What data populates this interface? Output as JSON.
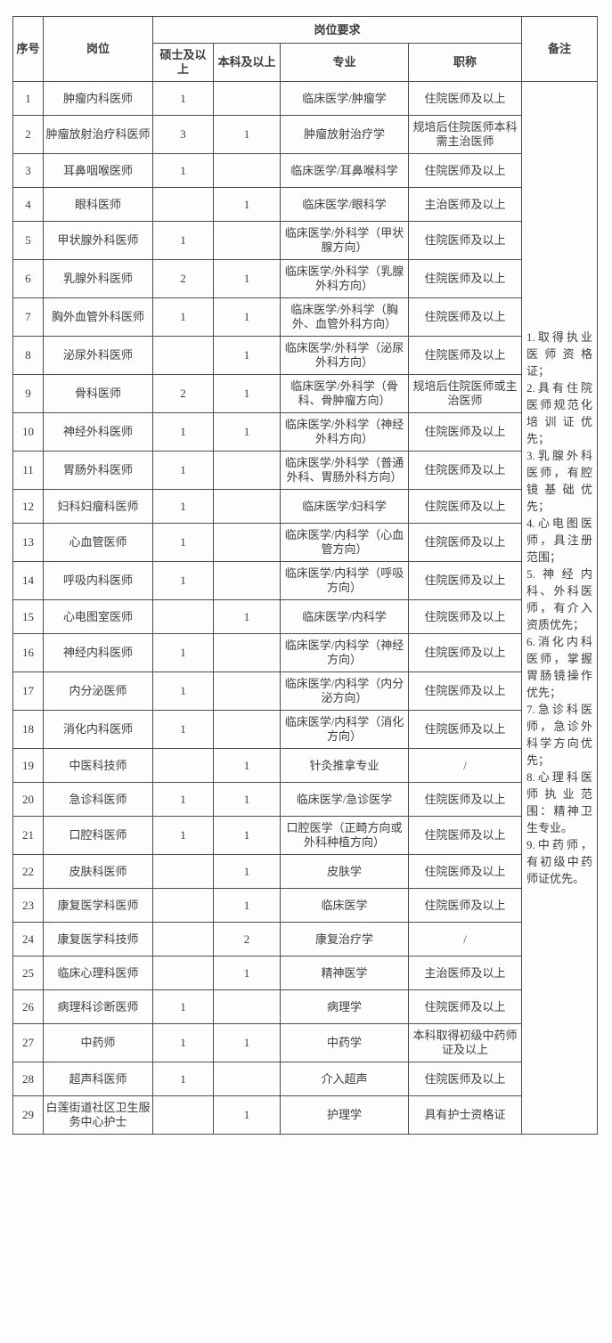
{
  "colors": {
    "page_background": "#fdfdfd",
    "border": "#4d4d4d",
    "text": "#3d3d3d"
  },
  "table": {
    "header": {
      "col_index": "序号",
      "col_position": "岗位",
      "group_requirements": "岗位要求",
      "col_master": "硕士及以上",
      "col_bachelor": "本科及以上",
      "col_major": "专业",
      "col_title": "职称",
      "col_remarks": "备注"
    },
    "rows": [
      {
        "no": "1",
        "position": "肿瘤内科医师",
        "master": "1",
        "bachelor": "",
        "major": "临床医学/肿瘤学",
        "title": "住院医师及以上"
      },
      {
        "no": "2",
        "position": "肿瘤放射治疗科医师",
        "master": "3",
        "bachelor": "1",
        "major": "肿瘤放射治疗学",
        "title": "规培后住院医师本科需主治医师"
      },
      {
        "no": "3",
        "position": "耳鼻咽喉医师",
        "master": "1",
        "bachelor": "",
        "major": "临床医学/耳鼻喉科学",
        "title": "住院医师及以上"
      },
      {
        "no": "4",
        "position": "眼科医师",
        "master": "",
        "bachelor": "1",
        "major": "临床医学/眼科学",
        "title": "主治医师及以上"
      },
      {
        "no": "5",
        "position": "甲状腺外科医师",
        "master": "1",
        "bachelor": "",
        "major": "临床医学/外科学（甲状腺方向）",
        "title": "住院医师及以上"
      },
      {
        "no": "6",
        "position": "乳腺外科医师",
        "master": "2",
        "bachelor": "1",
        "major": "临床医学/外科学（乳腺外科方向）",
        "title": "住院医师及以上"
      },
      {
        "no": "7",
        "position": "胸外血管外科医师",
        "master": "1",
        "bachelor": "1",
        "major": "临床医学/外科学（胸外、血管外科方向）",
        "title": "住院医师及以上"
      },
      {
        "no": "8",
        "position": "泌尿外科医师",
        "master": "",
        "bachelor": "1",
        "major": "临床医学/外科学（泌尿外科方向）",
        "title": "住院医师及以上"
      },
      {
        "no": "9",
        "position": "骨科医师",
        "master": "2",
        "bachelor": "1",
        "major": "临床医学/外科学（骨科、骨肿瘤方向）",
        "title": "规培后住院医师或主治医师"
      },
      {
        "no": "10",
        "position": "神经外科医师",
        "master": "1",
        "bachelor": "1",
        "major": "临床医学/外科学（神经外科方向）",
        "title": "住院医师及以上"
      },
      {
        "no": "11",
        "position": "胃肠外科医师",
        "master": "1",
        "bachelor": "",
        "major": "临床医学/外科学（普通外科、胃肠外科方向）",
        "title": "住院医师及以上"
      },
      {
        "no": "12",
        "position": "妇科妇瘤科医师",
        "master": "1",
        "bachelor": "",
        "major": "临床医学/妇科学",
        "title": "住院医师及以上"
      },
      {
        "no": "13",
        "position": "心血管医师",
        "master": "1",
        "bachelor": "",
        "major": "临床医学/内科学（心血管方向）",
        "title": "住院医师及以上"
      },
      {
        "no": "14",
        "position": "呼吸内科医师",
        "master": "1",
        "bachelor": "",
        "major": "临床医学/内科学（呼吸方向）",
        "title": "住院医师及以上"
      },
      {
        "no": "15",
        "position": "心电图室医师",
        "master": "",
        "bachelor": "1",
        "major": "临床医学/内科学",
        "title": "住院医师及以上"
      },
      {
        "no": "16",
        "position": "神经内科医师",
        "master": "1",
        "bachelor": "",
        "major": "临床医学/内科学（神经方向）",
        "title": "住院医师及以上"
      },
      {
        "no": "17",
        "position": "内分泌医师",
        "master": "1",
        "bachelor": "",
        "major": "临床医学/内科学（内分泌方向）",
        "title": "住院医师及以上"
      },
      {
        "no": "18",
        "position": "消化内科医师",
        "master": "1",
        "bachelor": "",
        "major": "临床医学/内科学（消化方向）",
        "title": "住院医师及以上"
      },
      {
        "no": "19",
        "position": "中医科技师",
        "master": "",
        "bachelor": "1",
        "major": "针灸推拿专业",
        "title": "/"
      },
      {
        "no": "20",
        "position": "急诊科医师",
        "master": "1",
        "bachelor": "1",
        "major": "临床医学/急诊医学",
        "title": "住院医师及以上"
      },
      {
        "no": "21",
        "position": "口腔科医师",
        "master": "1",
        "bachelor": "1",
        "major": "口腔医学（正畸方向或外科种植方向）",
        "title": "住院医师及以上"
      },
      {
        "no": "22",
        "position": "皮肤科医师",
        "master": "",
        "bachelor": "1",
        "major": "皮肤学",
        "title": "住院医师及以上"
      },
      {
        "no": "23",
        "position": "康复医学科医师",
        "master": "",
        "bachelor": "1",
        "major": "临床医学",
        "title": "住院医师及以上"
      },
      {
        "no": "24",
        "position": "康复医学科技师",
        "master": "",
        "bachelor": "2",
        "major": "康复治疗学",
        "title": "/"
      },
      {
        "no": "25",
        "position": "临床心理科医师",
        "master": "",
        "bachelor": "1",
        "major": "精神医学",
        "title": "主治医师及以上"
      },
      {
        "no": "26",
        "position": "病理科诊断医师",
        "master": "1",
        "bachelor": "",
        "major": "病理学",
        "title": "住院医师及以上"
      },
      {
        "no": "27",
        "position": "中药师",
        "master": "1",
        "bachelor": "1",
        "major": "中药学",
        "title": "本科取得初级中药师证及以上"
      },
      {
        "no": "28",
        "position": "超声科医师",
        "master": "1",
        "bachelor": "",
        "major": "介入超声",
        "title": "住院医师及以上"
      },
      {
        "no": "29",
        "position": "白莲街道社区卫生服务中心护士",
        "master": "",
        "bachelor": "1",
        "major": "护理学",
        "title": "具有护士资格证"
      }
    ],
    "remarks": [
      "1.取得执业医师资格证；",
      "2.具有住院医师规范化培训证优先；",
      "3.乳腺外科医师，有腔镜基础优先；",
      "4.心电图医师，具注册范围；",
      "5.神经内科、外科医师，有介入资质优先；",
      "6.消化内科医师，掌握胃肠镜操作优先；",
      "7.急诊科医师，急诊外科学方向优先；",
      "8.心理科医师执业范围：精神卫生专业。",
      "9.中药师，有初级中药师证优先。"
    ]
  }
}
